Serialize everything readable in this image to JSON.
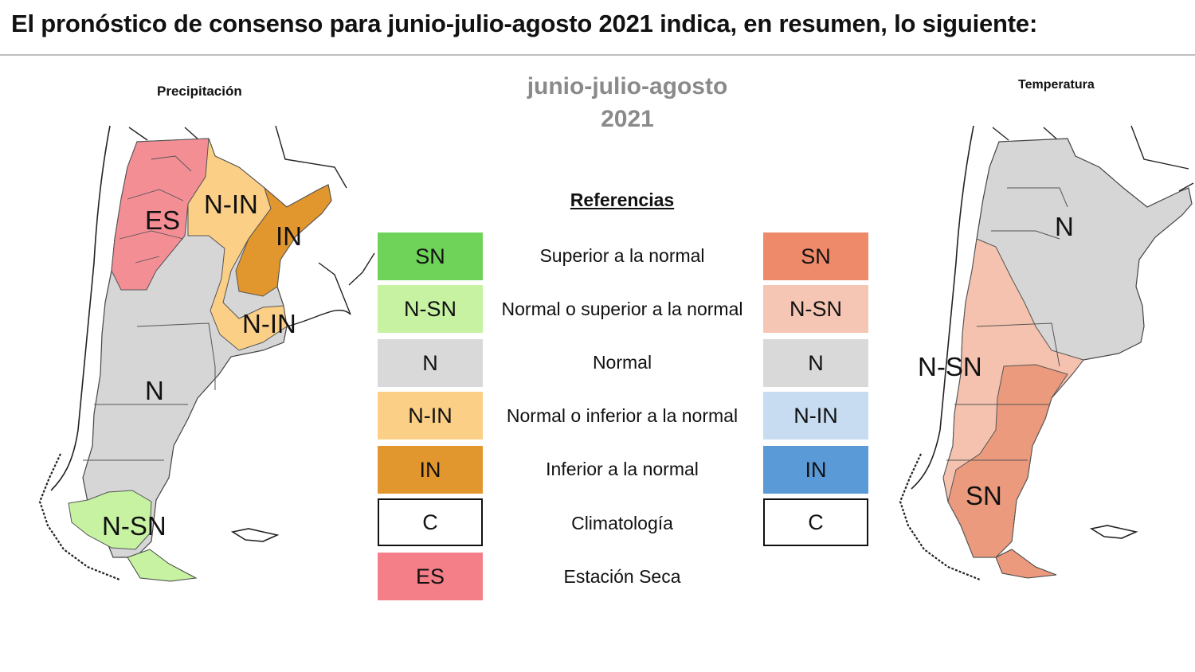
{
  "header": {
    "title": "El pronóstico de consenso para junio-julio-agosto 2021 indica, en resumen, lo siguiente:"
  },
  "period": {
    "line1": "junio-julio-agosto",
    "line2": "2021"
  },
  "legend": {
    "title": "Referencias",
    "rows": [
      {
        "code": "SN",
        "label": "Superior a la normal",
        "precip_color": "#6fd35a",
        "temp_color": "#ee8a6a",
        "temp_code": "SN"
      },
      {
        "code": "N-SN",
        "label": "Normal o superior a la normal",
        "precip_color": "#c6f2a2",
        "temp_color": "#f6c6b4",
        "temp_code": "N-SN"
      },
      {
        "code": "N",
        "label": "Normal",
        "precip_color": "#d9d9d9",
        "temp_color": "#d9d9d9",
        "temp_code": "N"
      },
      {
        "code": "N-IN",
        "label": "Normal o inferior a la normal",
        "precip_color": "#fbcf86",
        "temp_color": "#c7dcf0",
        "temp_code": "N-IN"
      },
      {
        "code": "IN",
        "label": "Inferior a la normal",
        "precip_color": "#e2962e",
        "temp_color": "#5a9ad6",
        "temp_code": "IN"
      },
      {
        "code": "C",
        "label": "Climatología",
        "precip_color": "#ffffff",
        "temp_color": "#ffffff",
        "temp_code": "C"
      },
      {
        "code": "ES",
        "label": "Estación Seca",
        "precip_color": "#f47f88"
      }
    ]
  },
  "precip_map": {
    "title": "Precipitación",
    "labels": {
      "es": "ES",
      "n_in_north": "N-IN",
      "in": "IN",
      "n_in_south": "N-IN",
      "n": "N",
      "n_sn": "N-SN"
    }
  },
  "temp_map": {
    "title": "Temperatura",
    "labels": {
      "n": "N",
      "n_sn": "N-SN",
      "sn": "SN"
    }
  }
}
